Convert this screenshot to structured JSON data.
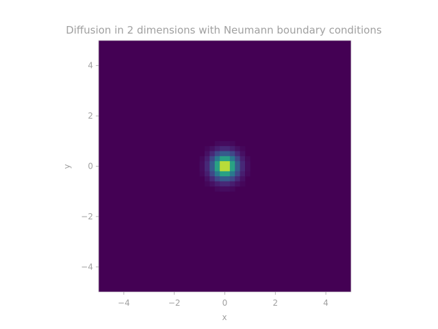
{
  "chart_data": {
    "type": "heatmap",
    "title": "Diffusion in 2 dimensions with Neumann boundary conditions",
    "xlabel": "x",
    "ylabel": "y",
    "xlim": [
      -5,
      5
    ],
    "ylim": [
      -5,
      5
    ],
    "x_ticks": [
      -4,
      -2,
      0,
      2,
      4
    ],
    "y_ticks": [
      -4,
      -2,
      0,
      2,
      4
    ],
    "grid": false,
    "colormap": "viridis",
    "field": {
      "kind": "gaussian",
      "center": [
        0,
        0
      ],
      "sigma": 0.36,
      "amplitude": 1.0,
      "background": 0.0
    },
    "resolution": 50
  }
}
